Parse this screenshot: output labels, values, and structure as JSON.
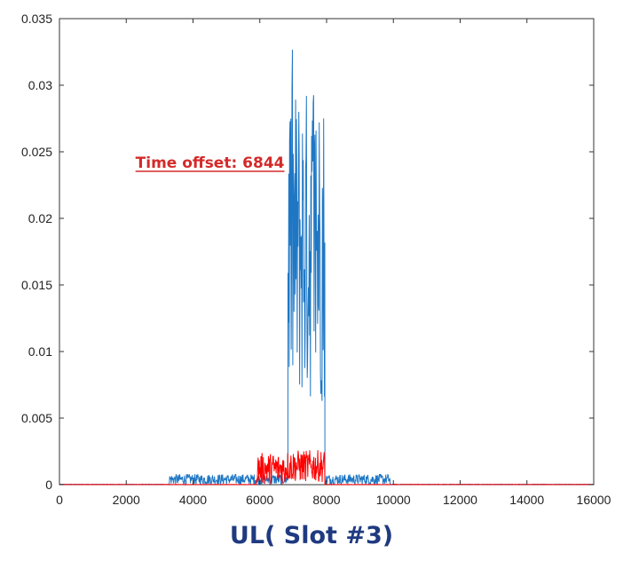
{
  "chart_data": {
    "type": "line",
    "title": "",
    "caption": "UL( Slot #3)",
    "xlim": [
      0,
      16000
    ],
    "ylim": [
      0,
      0.035
    ],
    "x_ticks": [
      0,
      2000,
      4000,
      6000,
      8000,
      10000,
      12000,
      14000,
      16000
    ],
    "y_ticks": [
      0,
      0.005,
      0.01,
      0.015,
      0.02,
      0.025,
      0.03,
      0.035
    ],
    "x_tick_labels": [
      "0",
      "2000",
      "4000",
      "6000",
      "8000",
      "10000",
      "12000",
      "14000",
      "16000"
    ],
    "y_tick_labels": [
      "0",
      "0.005",
      "0.01",
      "0.015",
      "0.02",
      "0.025",
      "0.03",
      "0.035"
    ],
    "annotation": {
      "text": "Time offset: 6844",
      "x": 6844
    },
    "series": [
      {
        "color": "#1f77c4",
        "segments": [
          {
            "x_range": [
              0,
              3300
            ],
            "level": 2e-05,
            "noise": 2e-05
          },
          {
            "x_range": [
              3300,
              6844
            ],
            "level": 0.0004,
            "noise": 0.0004
          },
          {
            "x_range": [
              6844,
              7950
            ],
            "level": 0.018,
            "noise": 0.012,
            "peak": 0.033
          },
          {
            "x_range": [
              7950,
              9900
            ],
            "level": 0.0004,
            "noise": 0.0004
          },
          {
            "x_range": [
              9900,
              16000
            ],
            "level": 2e-05,
            "noise": 2e-05
          }
        ]
      },
      {
        "color": "#ff0000",
        "segments": [
          {
            "x_range": [
              0,
              5900
            ],
            "level": 1e-05,
            "noise": 1e-05
          },
          {
            "x_range": [
              5900,
              6800
            ],
            "level": 0.0012,
            "noise": 0.0012
          },
          {
            "x_range": [
              6800,
              7950
            ],
            "level": 0.0014,
            "noise": 0.0012
          },
          {
            "x_range": [
              7950,
              16000
            ],
            "level": 1e-05,
            "noise": 1e-05
          }
        ]
      }
    ]
  },
  "colors": {
    "caption": "#1f3a80",
    "annotation": "#d42a2a",
    "axis": "#333333"
  }
}
